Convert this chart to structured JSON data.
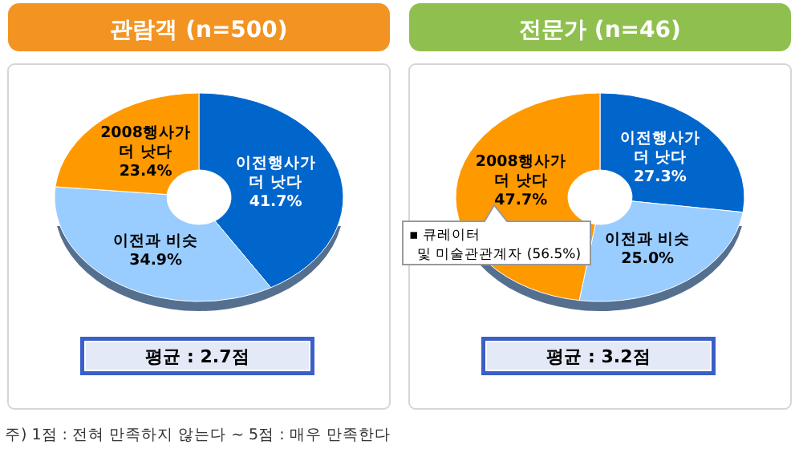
{
  "chart_data": [
    {
      "type": "donut",
      "title": "관람객 (n=500)",
      "categories": [
        "이전행사가 더 낫다",
        "이전과 비슷",
        "2008행사가 더 낫다"
      ],
      "values": [
        41.7,
        34.9,
        23.4
      ],
      "value_labels": [
        "41.7%",
        "34.9%",
        "23.4%"
      ],
      "colors": [
        "#0066cc",
        "#99ccff",
        "#ff9900"
      ],
      "annotations": [
        "평균 : 2.7점",
        "주) 1점 : 전혀 만족하지 않는다 ~ 5점 : 매우 만족한다"
      ]
    },
    {
      "type": "donut",
      "title": "전문가 (n=46)",
      "categories": [
        "이전행사가 더 낫다",
        "이전과 비슷",
        "2008행사가 더 낫다"
      ],
      "values": [
        27.3,
        25.0,
        47.7
      ],
      "value_labels": [
        "27.3%",
        "25.0%",
        "47.7%"
      ],
      "colors": [
        "#0066cc",
        "#99ccff",
        "#ff9900"
      ],
      "annotations": [
        "평균 : 3.2점",
        "▪ 큐레이터 및 미술관관계자 (56.5%)"
      ]
    }
  ]
}
